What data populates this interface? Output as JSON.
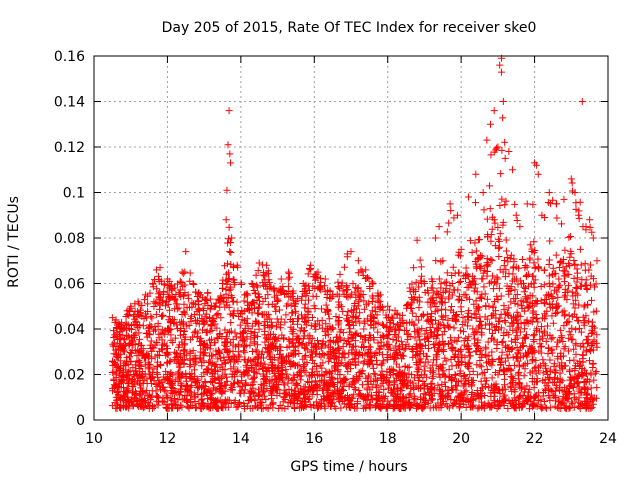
{
  "chart_data": {
    "type": "scatter",
    "title": "Day 205 of 2015, Rate Of TEC Index for receiver ske0",
    "xlabel": "GPS time / hours",
    "ylabel": "ROTI / TECUs",
    "xlim": [
      10,
      24
    ],
    "ylim": [
      0,
      0.16
    ],
    "x_ticks": [
      10,
      12,
      14,
      16,
      18,
      20,
      22,
      24
    ],
    "x_tick_labels": [
      "10",
      "12",
      "14",
      "16",
      "18",
      "20",
      "22",
      "24"
    ],
    "y_ticks": [
      0,
      0.02,
      0.04,
      0.06,
      0.08,
      0.1,
      0.12,
      0.14,
      0.16
    ],
    "y_tick_labels": [
      "0",
      "0.02",
      "0.04",
      "0.06",
      "0.08",
      "0.1",
      "0.12",
      "0.14",
      "0.16"
    ],
    "grid": true,
    "marker": "+",
    "color": "#ff0000",
    "x_range_observed": [
      10.5,
      23.7
    ],
    "series": [
      {
        "name": "ROTI",
        "x": [
          10.5,
          10.6,
          10.7,
          10.9,
          11.0,
          11.2,
          11.4,
          11.6,
          11.7,
          11.8,
          12.0,
          12.2,
          12.4,
          12.5,
          12.7,
          12.9,
          13.1,
          13.3,
          13.5,
          13.6,
          13.62,
          13.65,
          13.68,
          13.7,
          13.72,
          13.75,
          13.8,
          13.9,
          14.1,
          14.3,
          14.5,
          14.7,
          14.9,
          15.1,
          15.3,
          15.5,
          15.7,
          15.9,
          16.1,
          16.3,
          16.5,
          16.7,
          16.9,
          17.0,
          17.2,
          17.4,
          17.6,
          17.8,
          18.0,
          18.2,
          18.4,
          18.6,
          18.8,
          19.0,
          19.2,
          19.3,
          19.4,
          19.5,
          19.7,
          19.9,
          20.0,
          20.2,
          20.4,
          20.6,
          20.7,
          20.8,
          20.9,
          21.0,
          21.05,
          21.1,
          21.15,
          21.2,
          21.3,
          21.4,
          21.5,
          21.6,
          21.8,
          22.0,
          22.05,
          22.1,
          22.2,
          22.4,
          22.6,
          22.8,
          23.0,
          23.1,
          23.2,
          23.3,
          23.4,
          23.5,
          23.6,
          23.7
        ],
        "y": [
          0.045,
          0.044,
          0.042,
          0.048,
          0.05,
          0.052,
          0.055,
          0.06,
          0.066,
          0.067,
          0.062,
          0.058,
          0.065,
          0.074,
          0.06,
          0.055,
          0.056,
          0.05,
          0.06,
          0.088,
          0.101,
          0.121,
          0.136,
          0.117,
          0.113,
          0.08,
          0.067,
          0.068,
          0.055,
          0.06,
          0.069,
          0.068,
          0.058,
          0.062,
          0.065,
          0.052,
          0.06,
          0.068,
          0.065,
          0.062,
          0.055,
          0.064,
          0.073,
          0.074,
          0.07,
          0.066,
          0.06,
          0.055,
          0.05,
          0.048,
          0.046,
          0.058,
          0.079,
          0.06,
          0.062,
          0.08,
          0.085,
          0.07,
          0.095,
          0.09,
          0.075,
          0.098,
          0.108,
          0.1,
          0.123,
          0.13,
          0.136,
          0.12,
          0.156,
          0.159,
          0.14,
          0.115,
          0.118,
          0.11,
          0.09,
          0.085,
          0.095,
          0.113,
          0.112,
          0.108,
          0.09,
          0.1,
          0.095,
          0.097,
          0.106,
          0.1,
          0.09,
          0.14,
          0.085,
          0.088,
          0.08,
          0.07
        ]
      }
    ]
  }
}
